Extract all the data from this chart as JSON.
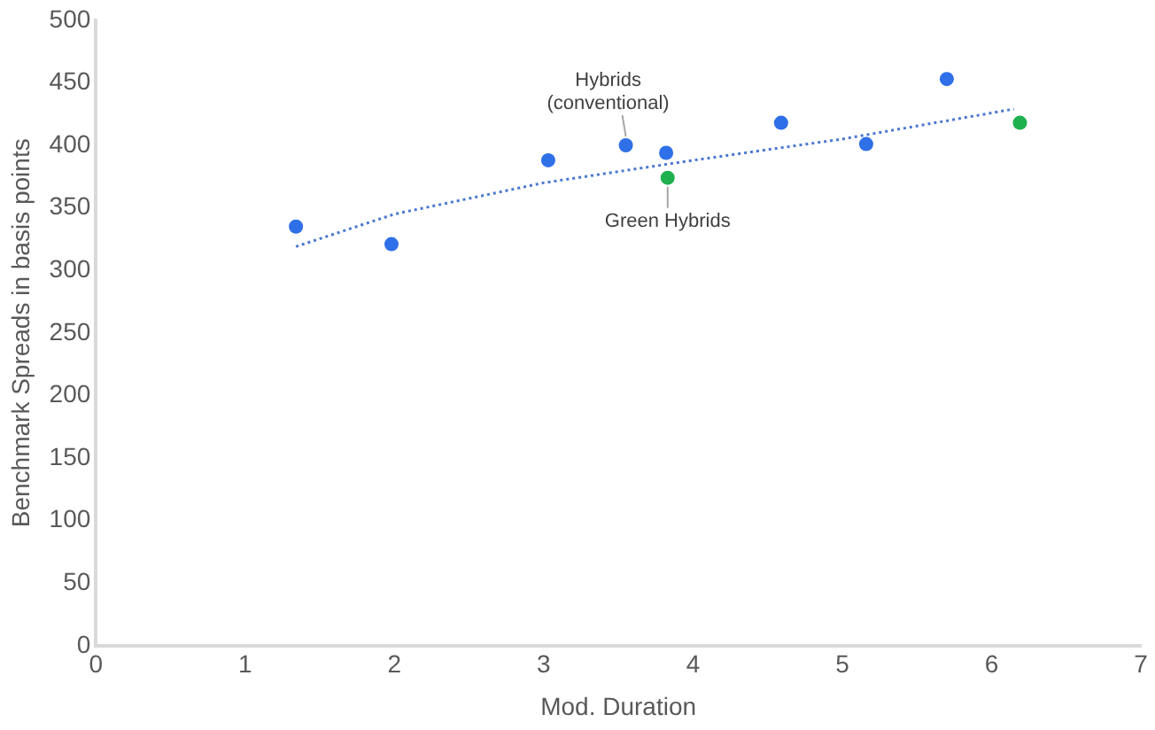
{
  "chart_data": {
    "type": "scatter",
    "xlabel": "Mod. Duration",
    "ylabel": "Benchmark Spreads in basis points",
    "xlim": [
      0,
      7
    ],
    "xticks": [
      0,
      1,
      2,
      3,
      4,
      5,
      6,
      7
    ],
    "ylim": [
      0,
      500
    ],
    "yticks": [
      0,
      50,
      100,
      150,
      200,
      250,
      300,
      350,
      400,
      450,
      500
    ],
    "grid": false,
    "legend": false,
    "marker": "circle",
    "series": [
      {
        "color": "#2f6fe8",
        "x": [
          1.34,
          1.98,
          3.03,
          3.55,
          3.82,
          4.59,
          5.16,
          5.7
        ],
        "values": [
          335,
          321,
          388,
          400,
          394,
          418,
          401,
          453
        ]
      },
      {
        "color": "#1fb050",
        "x": [
          3.83,
          6.19
        ],
        "values": [
          374,
          418
        ]
      },
      {
        "type": "line",
        "color": "#4a78d0",
        "line_style": "dotted",
        "marker": "none",
        "x": [
          1.34,
          2,
          3,
          4,
          5,
          6.15
        ],
        "values": [
          319,
          345,
          370,
          388,
          405,
          429
        ]
      }
    ],
    "annotations": [
      {
        "text": "Hybrids (conventional)",
        "x": 3.55,
        "y": 400
      },
      {
        "text": "Green Hybrids",
        "x": 3.83,
        "y": 374
      }
    ]
  }
}
